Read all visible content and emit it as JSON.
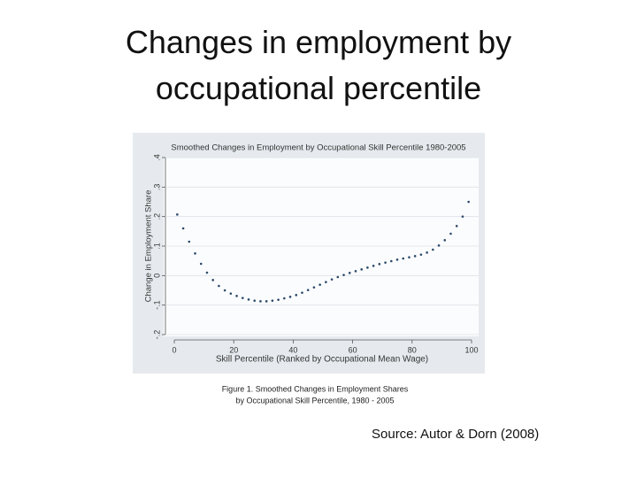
{
  "slide_title": "Changes in employment by occupational percentile",
  "chart_data": {
    "type": "scatter",
    "title": "Smoothed Changes in Employment by Occupational Skill Percentile 1980-2005",
    "x_label": "Skill Percentile (Ranked by Occupational Mean Wage)",
    "y_label": "Change in Employment Share",
    "x": [
      1,
      3,
      5,
      7,
      9,
      11,
      13,
      15,
      17,
      19,
      21,
      23,
      25,
      27,
      29,
      31,
      33,
      35,
      37,
      39,
      41,
      43,
      45,
      47,
      49,
      51,
      53,
      55,
      57,
      59,
      61,
      63,
      65,
      67,
      69,
      71,
      73,
      75,
      77,
      79,
      81,
      83,
      85,
      87,
      89,
      91,
      93,
      95,
      97,
      99
    ],
    "series": [
      {
        "color": "#2d4a6b",
        "values": [
          0.207,
          0.16,
          0.115,
          0.075,
          0.04,
          0.01,
          -0.015,
          -0.035,
          -0.05,
          -0.061,
          -0.069,
          -0.076,
          -0.081,
          -0.085,
          -0.087,
          -0.087,
          -0.085,
          -0.082,
          -0.077,
          -0.072,
          -0.066,
          -0.058,
          -0.049,
          -0.04,
          -0.031,
          -0.022,
          -0.013,
          -0.005,
          0.002,
          0.009,
          0.015,
          0.021,
          0.027,
          0.033,
          0.039,
          0.044,
          0.049,
          0.054,
          0.058,
          0.062,
          0.066,
          0.071,
          0.078,
          0.088,
          0.102,
          0.12,
          0.142,
          0.168,
          0.2,
          0.25
        ]
      }
    ],
    "xlim": [
      0,
      100
    ],
    "xticks": [
      0,
      20,
      40,
      60,
      80,
      100
    ],
    "ylim": [
      -0.2,
      0.4
    ],
    "yticks": [
      {
        "value": -0.2,
        "label": "-.2"
      },
      {
        "value": -0.1,
        "label": "-.1"
      },
      {
        "value": 0,
        "label": "0"
      },
      {
        "value": 0.1,
        "label": ".1"
      },
      {
        "value": 0.2,
        "label": ".2"
      },
      {
        "value": 0.3,
        "label": ".3"
      },
      {
        "value": 0.4,
        "label": ".4"
      }
    ],
    "grid": true
  },
  "caption": [
    "Figure 1. Smoothed Changes in Employment Shares",
    "by Occupational Skill Percentile, 1980 - 2005"
  ],
  "source": "Source:  Autor & Dorn (2008)"
}
